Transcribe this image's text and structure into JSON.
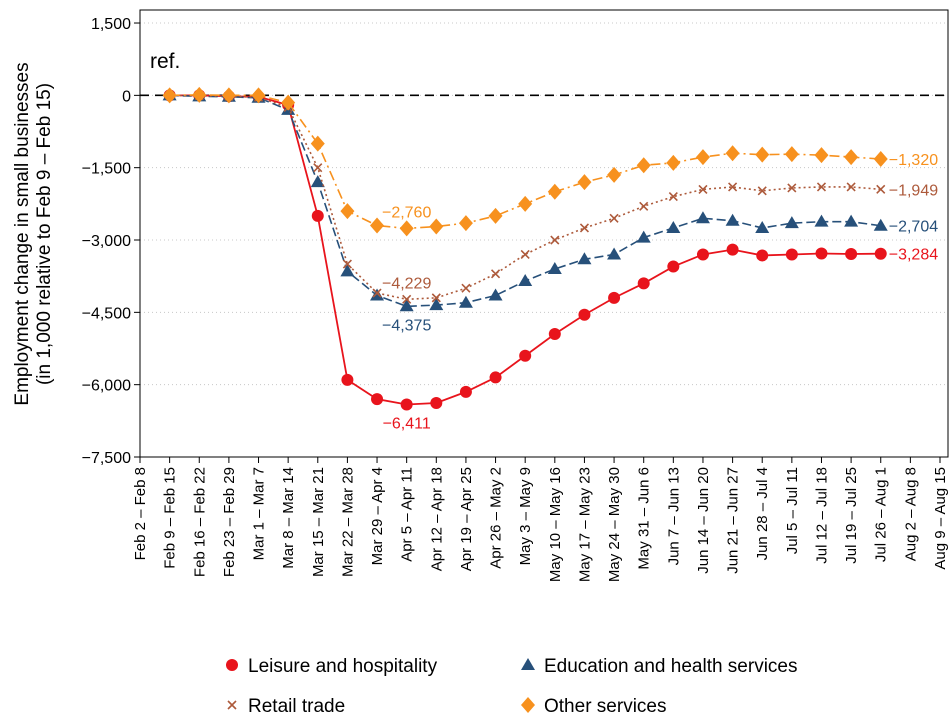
{
  "chart_data": {
    "type": "line",
    "y_label": [
      "Employment change in small businesses",
      "(in 1,000 relative to Feb 9 – Feb 15)"
    ],
    "reference_line": {
      "value": 0,
      "label": "ref."
    },
    "categories": [
      "Feb 2 – Feb 8",
      "Feb 9 – Feb 15",
      "Feb 16 – Feb 22",
      "Feb 23 – Feb 29",
      "Mar 1 – Mar 7",
      "Mar 8 – Mar 14",
      "Mar 15 – Mar 21",
      "Mar 22 – Mar 28",
      "Mar 29 – Apr 4",
      "Apr 5 – Apr 11",
      "Apr 12 – Apr 18",
      "Apr 19 – Apr 25",
      "Apr 26 – May 2",
      "May 3 – May 9",
      "May 10 – May 16",
      "May 17 – May 23",
      "May 24 – May 30",
      "May 31 – Jun 6",
      "Jun 7 – Jun 13",
      "Jun 14 – Jun 20",
      "Jun 21 – Jun 27",
      "Jun 28 – Jul 4",
      "Jul 5 – Jul 11",
      "Jul 12 – Jul 18",
      "Jul 19 – Jul 25",
      "Jul 26 – Aug 1",
      "Aug 2 – Aug 8",
      "Aug 9 – Aug 15"
    ],
    "series": [
      {
        "name": "Leisure and hospitality",
        "color": "#e8141c",
        "linestyle": "solid",
        "marker": "circle",
        "values": [
          null,
          0,
          0,
          -20,
          -30,
          -200,
          -2500,
          -5900,
          -6300,
          -6411,
          -6380,
          -6150,
          -5850,
          -5400,
          -4950,
          -4550,
          -4200,
          -3900,
          -3550,
          -3300,
          -3200,
          -3320,
          -3300,
          -3280,
          -3290,
          -3284,
          null,
          null
        ],
        "value_labels": [
          null,
          null,
          null,
          null,
          null,
          null,
          null,
          null,
          null,
          "−6,411",
          null,
          null,
          null,
          null,
          null,
          null,
          null,
          null,
          null,
          null,
          null,
          null,
          null,
          null,
          null,
          "−3,284",
          null,
          null
        ]
      },
      {
        "name": "Education and health services",
        "color": "#27507a",
        "linestyle": "dashed",
        "marker": "triangle",
        "values": [
          null,
          0,
          -20,
          -30,
          -50,
          -300,
          -1800,
          -3650,
          -4150,
          -4375,
          -4350,
          -4300,
          -4150,
          -3850,
          -3600,
          -3400,
          -3300,
          -2950,
          -2750,
          -2550,
          -2600,
          -2750,
          -2650,
          -2620,
          -2620,
          -2704,
          null,
          null
        ],
        "value_labels": [
          null,
          null,
          null,
          null,
          null,
          null,
          null,
          null,
          null,
          "−4,375",
          null,
          null,
          null,
          null,
          null,
          null,
          null,
          null,
          null,
          null,
          null,
          null,
          null,
          null,
          null,
          "−2,704",
          null,
          null
        ]
      },
      {
        "name": "Retail trade",
        "color": "#ad5a3b",
        "linestyle": "dotted",
        "marker": "x",
        "values": [
          null,
          0,
          -10,
          -20,
          -40,
          -250,
          -1500,
          -3500,
          -4100,
          -4229,
          -4200,
          -4000,
          -3700,
          -3300,
          -3000,
          -2750,
          -2550,
          -2300,
          -2100,
          -1950,
          -1900,
          -1980,
          -1920,
          -1900,
          -1900,
          -1949,
          null,
          null
        ],
        "value_labels": [
          null,
          null,
          null,
          null,
          null,
          null,
          null,
          null,
          null,
          "−4,229",
          null,
          null,
          null,
          null,
          null,
          null,
          null,
          null,
          null,
          null,
          null,
          null,
          null,
          null,
          null,
          "−1,949",
          null,
          null
        ]
      },
      {
        "name": "Other services",
        "color": "#f7911e",
        "linestyle": "dashdot",
        "marker": "diamond",
        "values": [
          null,
          0,
          10,
          0,
          0,
          -150,
          -1000,
          -2400,
          -2700,
          -2760,
          -2720,
          -2650,
          -2500,
          -2250,
          -2000,
          -1800,
          -1650,
          -1450,
          -1400,
          -1280,
          -1200,
          -1230,
          -1220,
          -1240,
          -1280,
          -1320,
          null,
          null
        ],
        "value_labels": [
          null,
          null,
          null,
          null,
          null,
          null,
          null,
          null,
          null,
          "−2,760",
          null,
          null,
          null,
          null,
          null,
          null,
          null,
          null,
          null,
          null,
          null,
          null,
          null,
          null,
          null,
          "−1,320",
          null,
          null
        ]
      }
    ],
    "ylim": [
      -7500,
      1770
    ],
    "yticks": [
      {
        "value": 1500,
        "label": "1,500"
      },
      0,
      {
        "value": -1500,
        "label": "−1,500"
      },
      {
        "value": -3000,
        "label": "−3,000"
      },
      {
        "value": -4500,
        "label": "−4,500"
      },
      {
        "value": -6000,
        "label": "−6,000"
      },
      {
        "value": -7500,
        "label": "−7,500"
      }
    ],
    "grid": true,
    "legend": "bottom"
  }
}
